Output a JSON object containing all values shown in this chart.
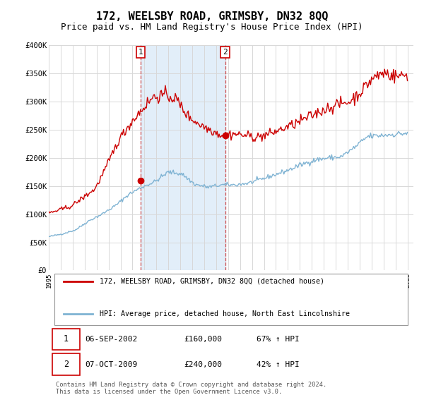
{
  "title": "172, WEELSBY ROAD, GRIMSBY, DN32 8QQ",
  "subtitle": "Price paid vs. HM Land Registry's House Price Index (HPI)",
  "title_fontsize": 11,
  "subtitle_fontsize": 9,
  "background_color": "#ffffff",
  "plot_bg_color": "#ffffff",
  "grid_color": "#d8d8d8",
  "ylim": [
    0,
    400000
  ],
  "yticks": [
    0,
    50000,
    100000,
    150000,
    200000,
    250000,
    300000,
    350000,
    400000
  ],
  "ytick_labels": [
    "£0",
    "£50K",
    "£100K",
    "£150K",
    "£200K",
    "£250K",
    "£300K",
    "£350K",
    "£400K"
  ],
  "xlim_start": 1995.0,
  "xlim_end": 2025.5,
  "red_line_color": "#cc0000",
  "blue_line_color": "#7fb3d3",
  "shade_color": "#d6e8f7",
  "shade_alpha": 0.7,
  "transaction1_x": 2002.67,
  "transaction1_y": 160000,
  "transaction1_label": "1",
  "transaction2_x": 2009.75,
  "transaction2_y": 240000,
  "transaction2_label": "2",
  "shade_x_start": 2002.67,
  "shade_x_end": 2009.75,
  "legend_line1": "172, WEELSBY ROAD, GRIMSBY, DN32 8QQ (detached house)",
  "legend_line2": "HPI: Average price, detached house, North East Lincolnshire",
  "table_row1": [
    "1",
    "06-SEP-2002",
    "£160,000",
    "67% ↑ HPI"
  ],
  "table_row2": [
    "2",
    "07-OCT-2009",
    "£240,000",
    "42% ↑ HPI"
  ],
  "footnote": "Contains HM Land Registry data © Crown copyright and database right 2024.\nThis data is licensed under the Open Government Licence v3.0."
}
